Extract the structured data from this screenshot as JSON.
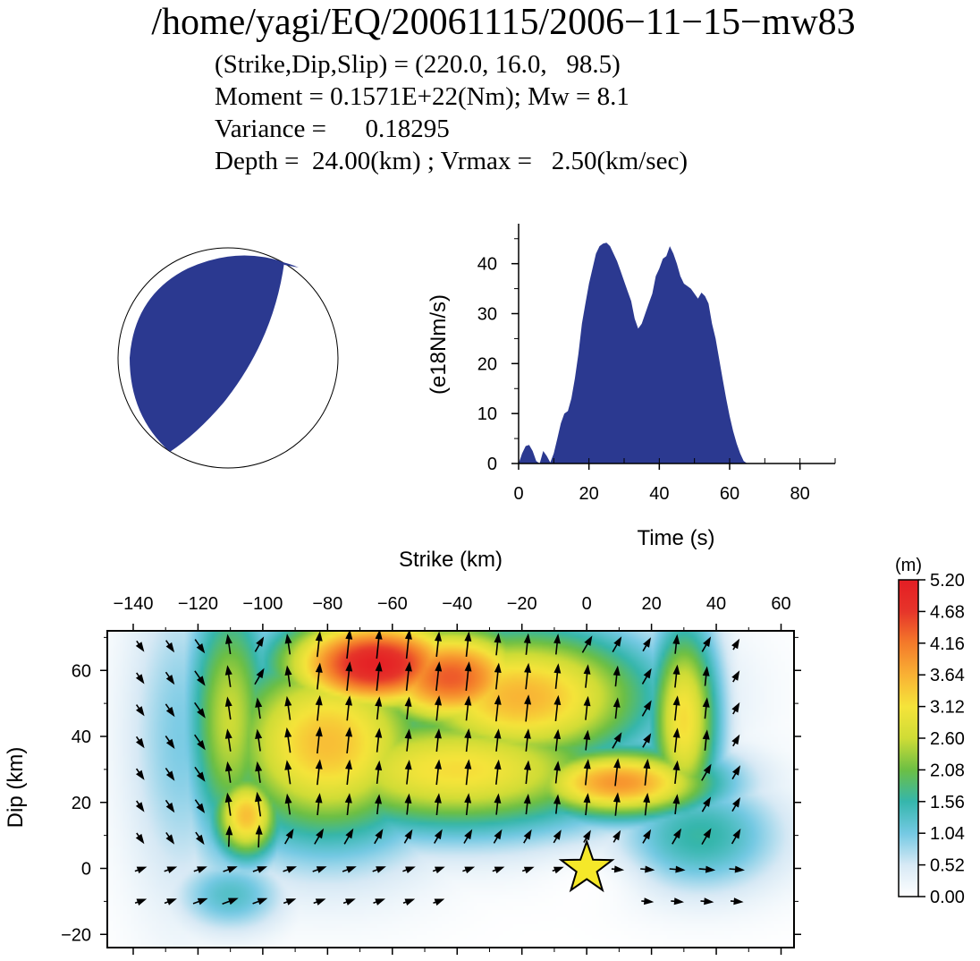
{
  "header": {
    "title": "/home/yagi/EQ/20061115/2006−11−15−mw83",
    "lines": [
      "(Strike,Dip,Slip) = (220.0, 16.0,   98.5)",
      "Moment = 0.1571E+22(Nm); Mw = 8.1",
      "Variance =      0.18295",
      "Depth =  24.00(km) ; Vrmax =   2.50(km/sec)"
    ]
  },
  "colors": {
    "fill": "#2b3990",
    "star": "#f5e829"
  },
  "chart_data": [
    {
      "type": "focal_mechanism",
      "strike": 220.0,
      "dip": 16.0,
      "slip": 98.5
    },
    {
      "type": "area",
      "xlabel": "Time (s)",
      "ylabel": "(e18Nm/s)",
      "xlim": [
        0,
        90
      ],
      "ylim": [
        0,
        48
      ],
      "xticks": [
        0,
        20,
        40,
        60,
        80
      ],
      "yticks": [
        0,
        10,
        20,
        30,
        40
      ],
      "x": [
        0,
        1,
        2,
        3,
        4,
        5,
        6,
        7,
        8,
        9,
        10,
        11,
        12,
        13,
        14,
        15,
        16,
        17,
        18,
        19,
        20,
        21,
        22,
        23,
        24,
        25,
        26,
        27,
        28,
        29,
        30,
        31,
        32,
        33,
        34,
        35,
        36,
        37,
        38,
        39,
        40,
        41,
        42,
        43,
        44,
        45,
        46,
        47,
        48,
        49,
        50,
        51,
        52,
        53,
        54,
        55,
        56,
        57,
        58,
        59,
        60,
        61,
        62,
        63,
        64,
        65,
        66
      ],
      "values": [
        0,
        2,
        3.5,
        3.7,
        2.5,
        0.5,
        0,
        2.5,
        1.5,
        0.2,
        2,
        5,
        8,
        10,
        10.5,
        13,
        17,
        22,
        28,
        32,
        36,
        39,
        42,
        43.5,
        44,
        44.2,
        43.5,
        42,
        40.5,
        38.5,
        36.5,
        34.5,
        32.5,
        29,
        27,
        28,
        30,
        32,
        34,
        37.5,
        39,
        41,
        41.5,
        43.5,
        42,
        40,
        37.5,
        36,
        35.5,
        35,
        34,
        33,
        34.2,
        33.5,
        32,
        28,
        25,
        21,
        17,
        13,
        9.5,
        6.5,
        4,
        2,
        0.5,
        0,
        0
      ]
    },
    {
      "type": "heatmap",
      "xlabel": "Strike (km)",
      "ylabel": "Dip (km)",
      "xlim": [
        -148,
        64
      ],
      "ylim": [
        -24,
        72
      ],
      "xticks": [
        -140,
        -120,
        -100,
        -80,
        -60,
        -40,
        -20,
        0,
        20,
        40,
        60
      ],
      "yticks": [
        -20,
        0,
        20,
        40,
        60
      ],
      "colorbar": {
        "unit": "(m)",
        "ticks": [
          "5.20",
          "4.68",
          "4.16",
          "3.64",
          "3.12",
          "2.60",
          "2.08",
          "1.56",
          "1.04",
          "0.52",
          "0.00"
        ],
        "colors": [
          "#ffffff",
          "#d7e9f5",
          "#74c9e3",
          "#35b6ac",
          "#6cbf44",
          "#cfdc36",
          "#f5e43a",
          "#f9b134",
          "#f47a2a",
          "#e6352a",
          "#e41d24"
        ]
      },
      "hypocenter": [
        0,
        0
      ],
      "asperities": [
        {
          "x": -65,
          "y": 62,
          "amp": 5.1,
          "sx": 22,
          "sy": 11
        },
        {
          "x": -42,
          "y": 58,
          "amp": 4.4,
          "sx": 20,
          "sy": 12
        },
        {
          "x": -20,
          "y": 52,
          "amp": 3.6,
          "sx": 30,
          "sy": 16
        },
        {
          "x": 10,
          "y": 26,
          "amp": 3.9,
          "sx": 22,
          "sy": 8
        },
        {
          "x": -105,
          "y": 16,
          "amp": 3.5,
          "sx": 8,
          "sy": 10
        },
        {
          "x": -80,
          "y": 38,
          "amp": 3.5,
          "sx": 25,
          "sy": 22
        },
        {
          "x": -40,
          "y": 30,
          "amp": 3.2,
          "sx": 40,
          "sy": 14
        },
        {
          "x": 30,
          "y": 45,
          "amp": 3.2,
          "sx": 8,
          "sy": 22
        },
        {
          "x": -110,
          "y": 45,
          "amp": 2.6,
          "sx": 10,
          "sy": 30
        },
        {
          "x": 35,
          "y": 10,
          "amp": 1.6,
          "sx": 18,
          "sy": 12
        },
        {
          "x": -110,
          "y": -8,
          "amp": 1.3,
          "sx": 12,
          "sy": 8
        },
        {
          "x": -125,
          "y": 40,
          "amp": 1.0,
          "sx": 12,
          "sy": 35
        }
      ]
    }
  ]
}
